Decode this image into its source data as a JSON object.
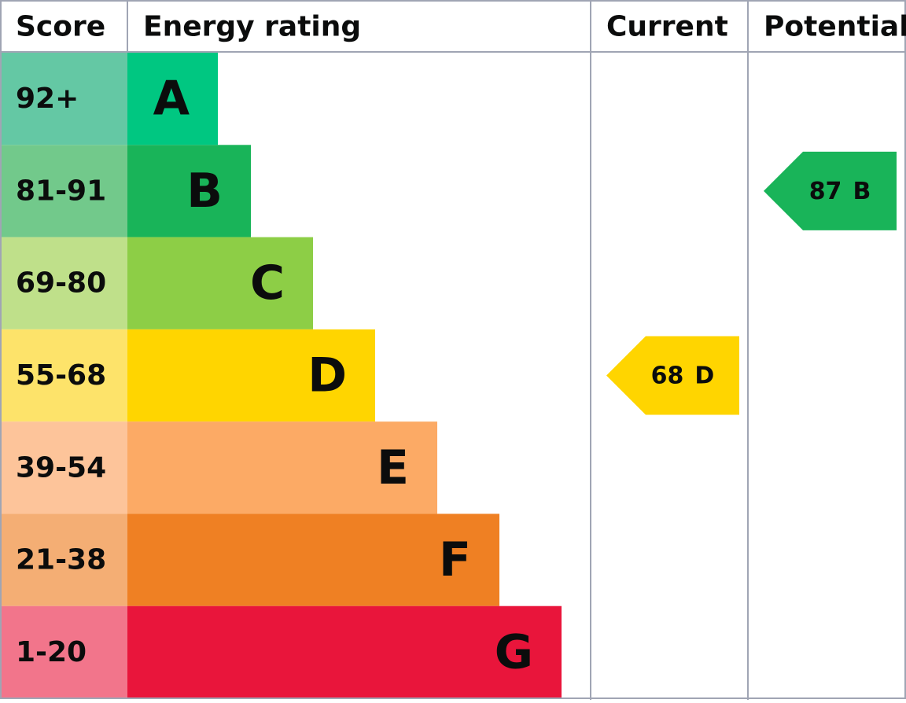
{
  "chart_data": {
    "type": "epc",
    "headers": [
      "Score",
      "Energy rating",
      "Current",
      "Potential"
    ],
    "bands": [
      {
        "score": "92+",
        "letter": "A",
        "score_color": "#64c8a4",
        "color": "#00c781"
      },
      {
        "score": "81-91",
        "letter": "B",
        "score_color": "#72c98b",
        "color": "#19b459"
      },
      {
        "score": "69-80",
        "letter": "C",
        "score_color": "#bfe08a",
        "color": "#8dce46"
      },
      {
        "score": "55-68",
        "letter": "D",
        "score_color": "#fde36a",
        "color": "#ffd500"
      },
      {
        "score": "39-54",
        "letter": "E",
        "score_color": "#fdc49a",
        "color": "#fcaa65"
      },
      {
        "score": "21-38",
        "letter": "F",
        "score_color": "#f4ae74",
        "color": "#ef8023"
      },
      {
        "score": "1-20",
        "letter": "G",
        "score_color": "#f2758b",
        "color": "#e9153b"
      }
    ],
    "current": {
      "value": 68,
      "rating": "D",
      "color": "#ffd500"
    },
    "potential": {
      "value": 87,
      "rating": "B",
      "color": "#19b459"
    }
  }
}
